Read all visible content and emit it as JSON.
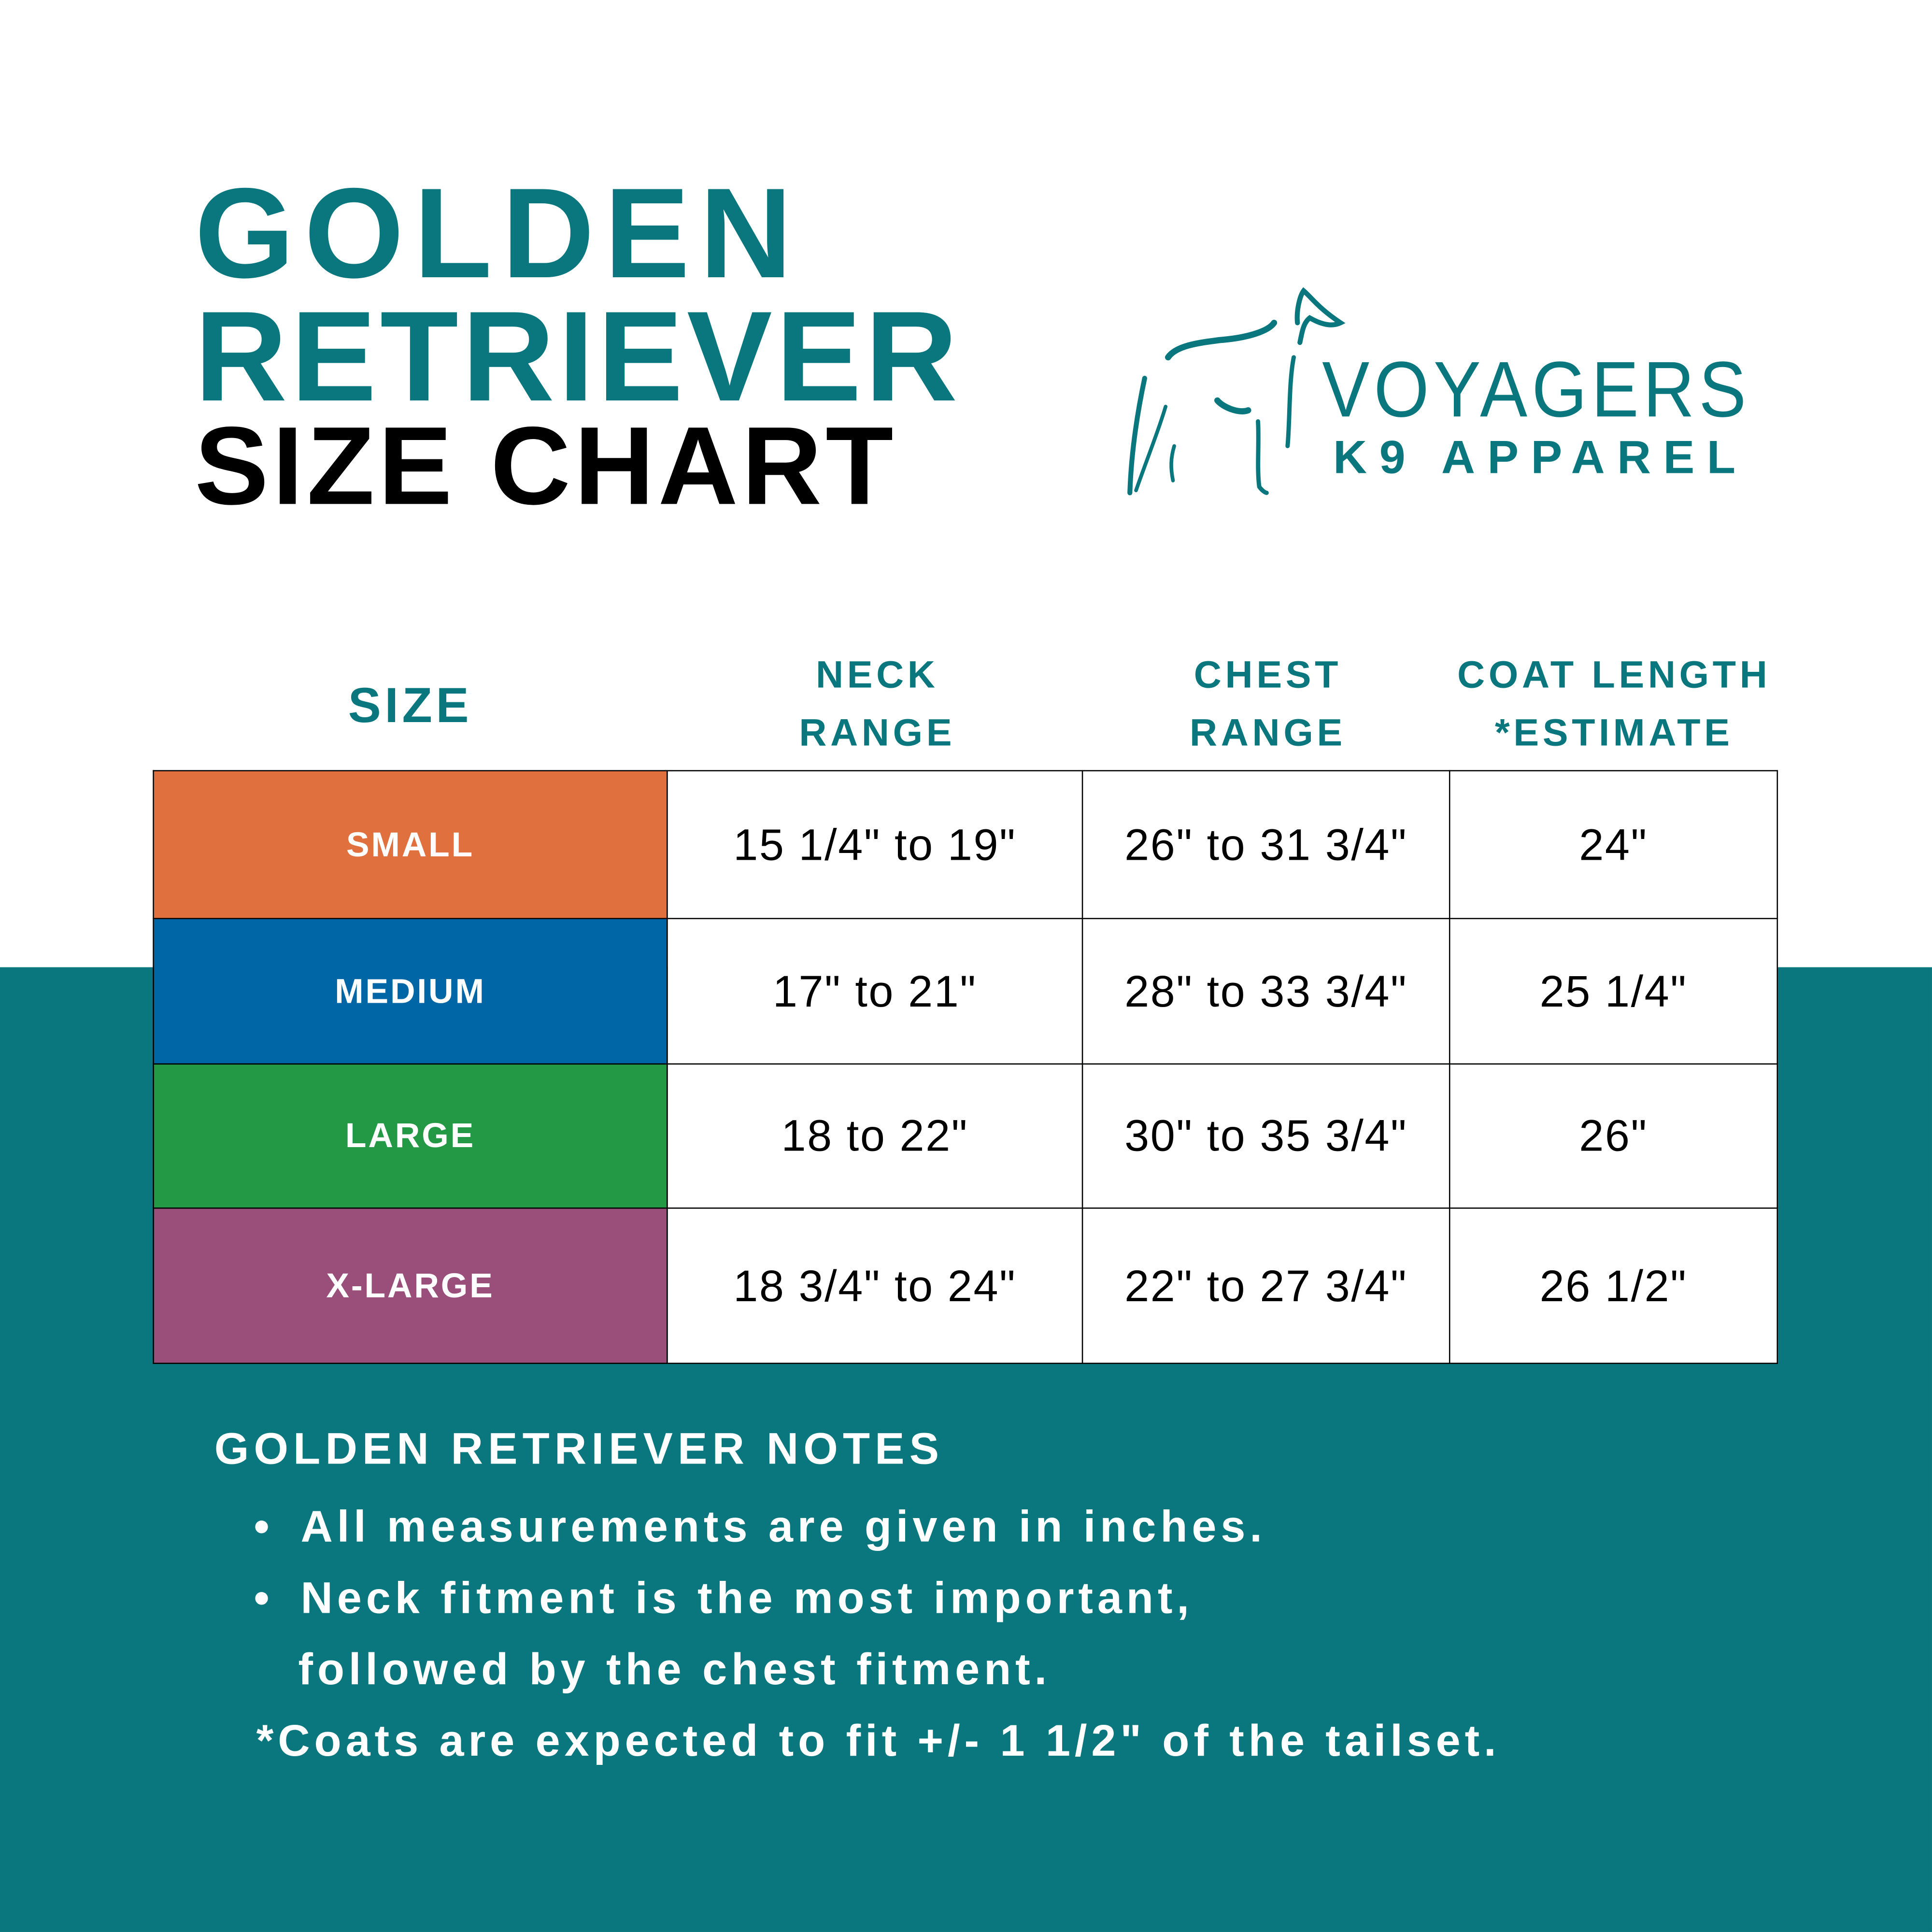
{
  "title": {
    "line1": "GOLDEN",
    "line2": "RETRIEVER",
    "line3": "SIZE CHART"
  },
  "brand": {
    "name": "VOYAGERS",
    "tagline": "K9 APPAREL",
    "logo_icon": "dog-silhouette-icon"
  },
  "colors": {
    "teal": "#0a777e",
    "small": "#e0703e",
    "medium": "#0066a6",
    "large": "#239845",
    "xlarge": "#9a4f7a"
  },
  "table": {
    "headers": {
      "size": "SIZE",
      "neck": [
        "NECK",
        "RANGE"
      ],
      "chest": [
        "CHEST",
        "RANGE"
      ],
      "coat": [
        "COAT LENGTH",
        "*ESTIMATE"
      ]
    },
    "rows": [
      {
        "size": "SMALL",
        "neck": "15 1/4\" to 19\"",
        "chest": "26\" to 31 3/4\"",
        "coat": "24\""
      },
      {
        "size": "MEDIUM",
        "neck": "17\" to 21\"",
        "chest": "28\" to 33 3/4\"",
        "coat": "25 1/4\""
      },
      {
        "size": "LARGE",
        "neck": "18 to 22\"",
        "chest": "30\" to 35 3/4\"",
        "coat": "26\""
      },
      {
        "size": "X-LARGE",
        "neck": "18 3/4\" to 24\"",
        "chest": "22\" to 27 3/4\"",
        "coat": "26 1/2\""
      }
    ]
  },
  "notes": {
    "heading": "GOLDEN RETRIEVER NOTES",
    "bullets": [
      "All measurements are given in inches.",
      "Neck fitment is the most important,",
      "followed by the chest fitment."
    ],
    "footnote": "*Coats are expected to fit +/- 1 1/2\" of the tailset."
  }
}
